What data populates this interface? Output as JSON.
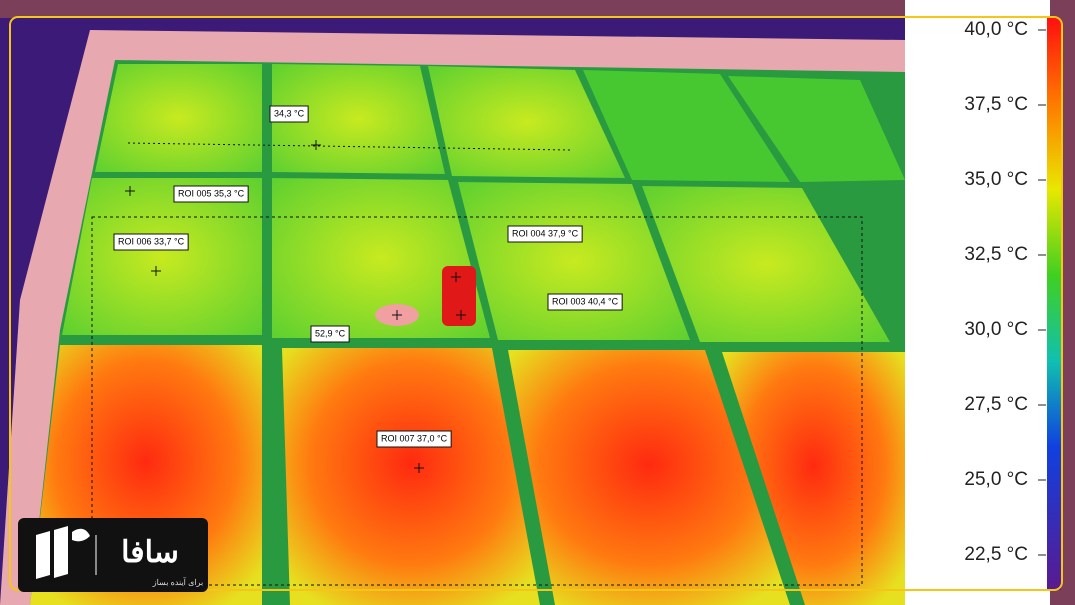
{
  "roi_labels": [
    "34,3 °C",
    "ROI 005 35,3 °C",
    "ROI 006 33,7 °C",
    "ROI 004 37,9 °C",
    "ROI 003 40,4 °C",
    "52,9 °C",
    "ROI 007 37,0 °C"
  ],
  "scale": {
    "labels": [
      "40,0 °C",
      "37,5 °C",
      "35,0 °C",
      "32,5 °C",
      "30,0 °C",
      "27,5 °C",
      "25,0 °C",
      "22,5 °C"
    ]
  },
  "logo": {
    "name": "سافا",
    "tagline": "برای آینده بساز"
  }
}
